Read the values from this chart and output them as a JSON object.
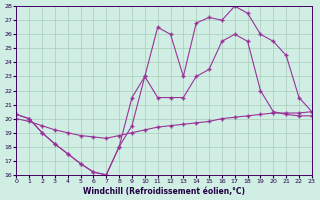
{
  "xlabel": "Windchill (Refroidissement éolien,°C)",
  "bg_color": "#d0eee4",
  "line_color": "#993399",
  "grid_color": "#aaccbb",
  "xlim": [
    0,
    23
  ],
  "ylim": [
    16,
    28
  ],
  "xticks": [
    0,
    1,
    2,
    3,
    4,
    5,
    6,
    7,
    8,
    9,
    10,
    11,
    12,
    13,
    14,
    15,
    16,
    17,
    18,
    19,
    20,
    21,
    22,
    23
  ],
  "yticks": [
    16,
    17,
    18,
    19,
    20,
    21,
    22,
    23,
    24,
    25,
    26,
    27,
    28
  ],
  "series": [
    {
      "x": [
        0,
        1,
        2,
        3,
        4,
        5,
        6,
        7,
        8,
        9,
        10,
        11,
        12,
        13,
        14,
        15,
        16,
        17,
        18,
        19,
        20,
        21,
        22,
        23
      ],
      "y": [
        20.0,
        19.8,
        19.5,
        19.2,
        19.0,
        18.8,
        18.7,
        18.6,
        18.8,
        19.0,
        19.2,
        19.4,
        19.5,
        19.6,
        19.7,
        19.8,
        20.0,
        20.1,
        20.2,
        20.3,
        20.4,
        20.4,
        20.4,
        20.5
      ]
    },
    {
      "x": [
        0,
        1,
        2,
        3,
        4,
        5,
        6,
        7,
        8,
        9,
        10,
        11,
        12,
        13,
        14,
        15,
        16,
        17,
        18,
        19,
        20,
        21,
        22,
        23
      ],
      "y": [
        20.3,
        20.0,
        19.0,
        18.2,
        17.5,
        16.8,
        16.2,
        16.0,
        18.0,
        19.5,
        23.0,
        26.5,
        26.0,
        23.0,
        26.8,
        27.2,
        27.0,
        28.0,
        27.5,
        26.0,
        25.5,
        24.5,
        21.5,
        20.5
      ]
    },
    {
      "x": [
        0,
        1,
        2,
        3,
        4,
        5,
        6,
        7,
        8,
        9,
        10,
        11,
        12,
        13,
        14,
        15,
        16,
        17,
        18,
        19,
        20,
        21,
        22,
        23
      ],
      "y": [
        20.3,
        20.0,
        19.0,
        18.2,
        17.5,
        16.8,
        16.2,
        16.0,
        18.0,
        21.5,
        23.0,
        21.5,
        21.5,
        21.5,
        23.0,
        23.5,
        25.5,
        26.0,
        25.5,
        22.0,
        20.5,
        20.3,
        20.2,
        20.2
      ]
    }
  ]
}
